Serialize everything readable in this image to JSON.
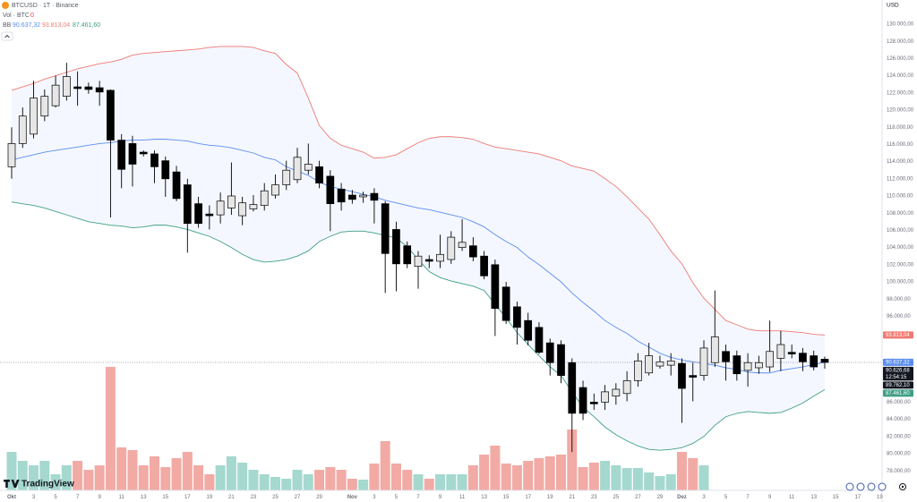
{
  "chart_data": {
    "type": "candlestick",
    "title": "BTCUSD · 1T · Binance",
    "currency": "USD",
    "volume_label": "Vol · BTC",
    "volume_value": 0,
    "indicator_label": "BB",
    "logo": "TradingView",
    "categories": [
      "Okt",
      null,
      "3",
      null,
      "5",
      null,
      "7",
      null,
      "9",
      null,
      "11",
      null,
      "13",
      null,
      "15",
      null,
      "17",
      null,
      "19",
      null,
      "21",
      null,
      "23",
      null,
      "25",
      null,
      "27",
      null,
      "29",
      null,
      null,
      "Nov",
      null,
      "3",
      null,
      "5",
      null,
      "7",
      null,
      "9",
      null,
      "11",
      null,
      "13",
      null,
      "15",
      null,
      "17",
      null,
      "19",
      null,
      "21",
      null,
      "23",
      null,
      "25",
      null,
      "27",
      null,
      "29",
      null,
      "Dez",
      null,
      "3",
      null,
      "5",
      null,
      "7",
      null,
      "9",
      null,
      "11",
      null,
      "13",
      null,
      "15",
      null,
      "17",
      null,
      "19"
    ],
    "open": [
      113400,
      116100,
      117200,
      119300,
      120500,
      121600,
      122700,
      122700,
      122600,
      122300,
      116500,
      116100,
      115100,
      114900,
      114100,
      112800,
      111300,
      109100,
      107900,
      107800,
      108600,
      107700,
      108500,
      108900,
      110100,
      111300,
      111900,
      113000,
      113400,
      112300,
      110800,
      110100,
      109900,
      110300,
      109100,
      106100,
      104200,
      101800,
      102600,
      102400,
      102600,
      104000,
      104200,
      103000,
      102000,
      99400,
      97100,
      95500,
      94700,
      92900,
      92700,
      90600,
      87700,
      86000,
      86000,
      86700,
      87000,
      88500,
      89400,
      90200,
      90300,
      90500,
      89100,
      89100,
      90600,
      91900,
      91400,
      89700,
      90000,
      90100,
      91100,
      91800,
      91700,
      91400,
      91000,
      null,
      null,
      null,
      null,
      null
    ],
    "high": [
      118000,
      120300,
      123400,
      122400,
      124000,
      125500,
      124500,
      123200,
      123400,
      122400,
      117200,
      117000,
      115300,
      115300,
      114600,
      113500,
      112000,
      109900,
      108900,
      110400,
      113900,
      109900,
      110100,
      111500,
      112500,
      114100,
      115600,
      116100,
      114100,
      113000,
      111500,
      110700,
      110500,
      110900,
      109400,
      107000,
      104700,
      103600,
      103100,
      105500,
      105900,
      107300,
      105200,
      103600,
      102600,
      100000,
      97700,
      96400,
      95300,
      93400,
      93200,
      91100,
      88500,
      87000,
      88000,
      88200,
      89600,
      91700,
      92900,
      91400,
      91700,
      91100,
      90600,
      93200,
      99000,
      92700,
      92000,
      91700,
      91400,
      95500,
      94300,
      92700,
      92300,
      92000,
      91300,
      null,
      null,
      null,
      null,
      null
    ],
    "low": [
      112000,
      115600,
      116700,
      118700,
      120300,
      121100,
      120500,
      121900,
      120500,
      107500,
      110900,
      111100,
      114600,
      111500,
      109900,
      109400,
      103400,
      106300,
      106100,
      106800,
      107800,
      106600,
      108200,
      108300,
      109700,
      110700,
      111500,
      112500,
      110900,
      105900,
      108300,
      109100,
      109200,
      106800,
      98700,
      98900,
      101600,
      99200,
      101600,
      101600,
      102100,
      103600,
      102400,
      100300,
      93700,
      95100,
      92700,
      92600,
      91600,
      89100,
      88200,
      80200,
      83900,
      85100,
      85100,
      85700,
      86100,
      87800,
      89100,
      89900,
      89100,
      83600,
      86100,
      88500,
      90100,
      88500,
      88500,
      87800,
      89300,
      89500,
      89600,
      91100,
      89600,
      89700,
      89900,
      null,
      null,
      null,
      null,
      null
    ],
    "close": [
      116100,
      119300,
      121400,
      121600,
      122900,
      123900,
      122500,
      122400,
      122100,
      116500,
      113100,
      113700,
      114900,
      113400,
      112000,
      109700,
      106800,
      106800,
      107700,
      109400,
      110000,
      109200,
      109000,
      110600,
      111300,
      113000,
      114500,
      113700,
      111500,
      109100,
      109300,
      109600,
      110100,
      109500,
      103300,
      102100,
      102100,
      103000,
      102400,
      103200,
      105200,
      104600,
      102900,
      100700,
      96900,
      95500,
      94700,
      93200,
      91800,
      90600,
      89100,
      84700,
      84700,
      85800,
      87200,
      87500,
      88500,
      90800,
      91400,
      90700,
      90800,
      87600,
      88900,
      92300,
      93600,
      90700,
      89300,
      90600,
      90600,
      91900,
      92700,
      91600,
      90700,
      90100,
      90626.68,
      null,
      null,
      null,
      null,
      null
    ],
    "last_close_label": "90.626,68",
    "countdown": "12:54:15",
    "extra_price": {
      "value": 89762.1,
      "label": "89.762,10"
    },
    "volume": [
      21500,
      16500,
      14000,
      16500,
      9000,
      14000,
      16500,
      11500,
      14000,
      69000,
      24000,
      22500,
      14000,
      19000,
      13000,
      18000,
      21500,
      14000,
      9000,
      14000,
      19000,
      15500,
      11500,
      9000,
      7500,
      6500,
      11500,
      9000,
      11500,
      13000,
      11500,
      6500,
      6000,
      15000,
      27500,
      15000,
      11500,
      9000,
      6500,
      9000,
      9000,
      9000,
      14000,
      20000,
      25000,
      15000,
      14000,
      16500,
      18000,
      19000,
      20000,
      34000,
      13000,
      15500,
      16500,
      14000,
      12500,
      12500,
      10000,
      8000,
      9000,
      21500,
      18000,
      14000,
      null,
      null,
      null,
      null,
      null,
      null,
      null,
      null,
      null,
      null,
      null,
      null,
      null,
      null,
      null,
      null
    ],
    "vlim": [
      0,
      274000
    ],
    "up_color": "#e6e6e6",
    "down_color": "#000000",
    "wick_color": "#000000",
    "up_volume_color": "#a5d8cf",
    "down_volume_color": "#f2aaa5",
    "band_fill": "#2962ff",
    "bands": [
      {
        "color": "#5b8def",
        "value_label": "90.637,32",
        "values": [
          114200,
          114500,
          114800,
          115100,
          115300,
          115500,
          115700,
          115900,
          116100,
          116200,
          116400,
          116500,
          116500,
          116600,
          116600,
          116500,
          116400,
          116100,
          115900,
          115800,
          115600,
          115300,
          115000,
          114500,
          114200,
          113400,
          112900,
          112400,
          111600,
          111100,
          110800,
          110500,
          110200,
          109900,
          109500,
          109200,
          108900,
          108600,
          108400,
          108100,
          107800,
          107500,
          107000,
          106400,
          105500,
          104700,
          104000,
          102900,
          102000,
          101000,
          100000,
          98700,
          97600,
          96600,
          95500,
          94700,
          94000,
          93100,
          92400,
          91700,
          91200,
          90900,
          90700,
          90500,
          90300,
          90000,
          89800,
          89500,
          89400,
          89400,
          89700,
          89900,
          90100,
          90400,
          90637.32,
          null,
          null,
          null,
          null,
          null
        ]
      },
      {
        "color": "#f07a72",
        "value_label": "93.813,04",
        "values": [
          122300,
          122700,
          123100,
          123600,
          124000,
          124400,
          124800,
          125100,
          125400,
          125600,
          125900,
          126400,
          126600,
          126700,
          126800,
          126900,
          127000,
          127100,
          127300,
          127400,
          127400,
          127400,
          127300,
          126900,
          126600,
          125300,
          124300,
          121400,
          118200,
          116700,
          115900,
          115500,
          115100,
          114400,
          114500,
          114800,
          115500,
          116200,
          116700,
          116900,
          116900,
          116800,
          116600,
          116100,
          115700,
          115500,
          115300,
          115100,
          114900,
          114500,
          114100,
          113500,
          113200,
          112900,
          112000,
          111100,
          109900,
          108600,
          107300,
          105500,
          103600,
          102100,
          99900,
          98100,
          96800,
          95500,
          95000,
          94500,
          94300,
          94300,
          94300,
          94200,
          94100,
          93900,
          93813.04,
          null,
          null,
          null,
          null,
          null
        ]
      },
      {
        "color": "#3f9f86",
        "value_label": "87.461,60",
        "values": [
          109300,
          109100,
          108900,
          108600,
          108200,
          107800,
          107400,
          107000,
          106800,
          106600,
          106500,
          106300,
          106400,
          106600,
          106600,
          106400,
          106100,
          105700,
          105300,
          104700,
          104000,
          103200,
          102600,
          102300,
          102400,
          102600,
          103000,
          103600,
          104700,
          105300,
          105800,
          105900,
          105900,
          105700,
          105400,
          105100,
          104100,
          102600,
          101200,
          100500,
          100100,
          99800,
          99500,
          99000,
          97400,
          95800,
          94100,
          92700,
          91400,
          90100,
          89100,
          87200,
          85400,
          84300,
          83100,
          82200,
          81500,
          80900,
          80500,
          80400,
          80500,
          80700,
          81200,
          82000,
          83300,
          84300,
          84700,
          84900,
          84800,
          84700,
          84800,
          85300,
          85900,
          86700,
          87461.6,
          null,
          null,
          null,
          null,
          null
        ]
      }
    ],
    "ylim": [
      76000,
      132812
    ],
    "yticks": [
      {
        "value": 78000,
        "label": "78.000,00"
      },
      {
        "value": 80000,
        "label": "80.000,00"
      },
      {
        "value": 82000,
        "label": "82.000,00"
      },
      {
        "value": 84000,
        "label": "84.000,00"
      },
      {
        "value": 86000,
        "label": "86.000,00"
      },
      {
        "value": 96000,
        "label": "96.000,00"
      },
      {
        "value": 98000,
        "label": "98.000,00"
      },
      {
        "value": 100000,
        "label": "100.000,00"
      },
      {
        "value": 102000,
        "label": "102.000,00"
      },
      {
        "value": 104000,
        "label": "104.000,00"
      },
      {
        "value": 106000,
        "label": "106.000,00"
      },
      {
        "value": 108000,
        "label": "108.000,00"
      },
      {
        "value": 110000,
        "label": "110.000,00"
      },
      {
        "value": 112000,
        "label": "112.000,00"
      },
      {
        "value": 114000,
        "label": "114.000,00"
      },
      {
        "value": 116000,
        "label": "116.000,00"
      },
      {
        "value": 118000,
        "label": "118.000,00"
      },
      {
        "value": 120000,
        "label": "120.000,00"
      },
      {
        "value": 122000,
        "label": "122.000,00"
      },
      {
        "value": 124000,
        "label": "124.000,00"
      },
      {
        "value": 126000,
        "label": "126.000,00"
      },
      {
        "value": 128000,
        "label": "128.000,00"
      },
      {
        "value": 130000,
        "label": "130.000,00"
      }
    ],
    "grid": false
  }
}
